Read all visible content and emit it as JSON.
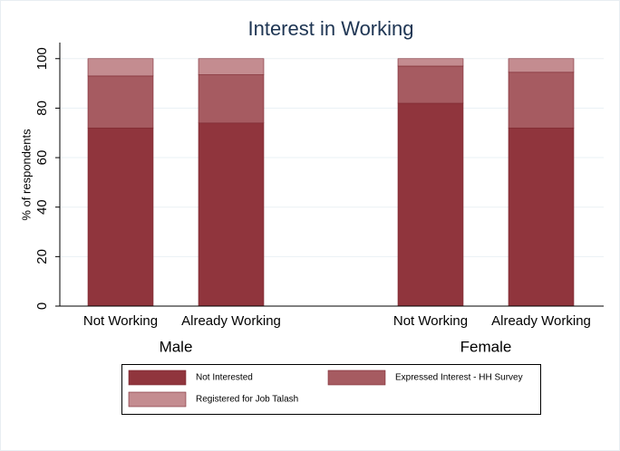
{
  "chart_data": {
    "type": "stacked-bar",
    "title": "Interest in Working",
    "y_label": "% of respondents",
    "groups": [
      {
        "name": "Male",
        "categories": [
          "Not Working",
          "Already Working"
        ]
      },
      {
        "name": "Female",
        "categories": [
          "Not Working",
          "Already Working"
        ]
      }
    ],
    "series": [
      {
        "name": "Not Interested",
        "color": "#90353d",
        "values": [
          72,
          74,
          82,
          72
        ]
      },
      {
        "name": "Expressed Interest - HH Survey",
        "color": "#a65b61",
        "values": [
          21,
          19.5,
          15,
          22.5
        ]
      },
      {
        "name": "Registered for Job Talash",
        "color": "#c48c90",
        "values": [
          7,
          6.5,
          3,
          5.5
        ]
      }
    ],
    "ylim": [
      0,
      106.5
    ],
    "yticks": [
      0,
      20,
      40,
      60,
      80,
      100
    ],
    "grid": true
  }
}
